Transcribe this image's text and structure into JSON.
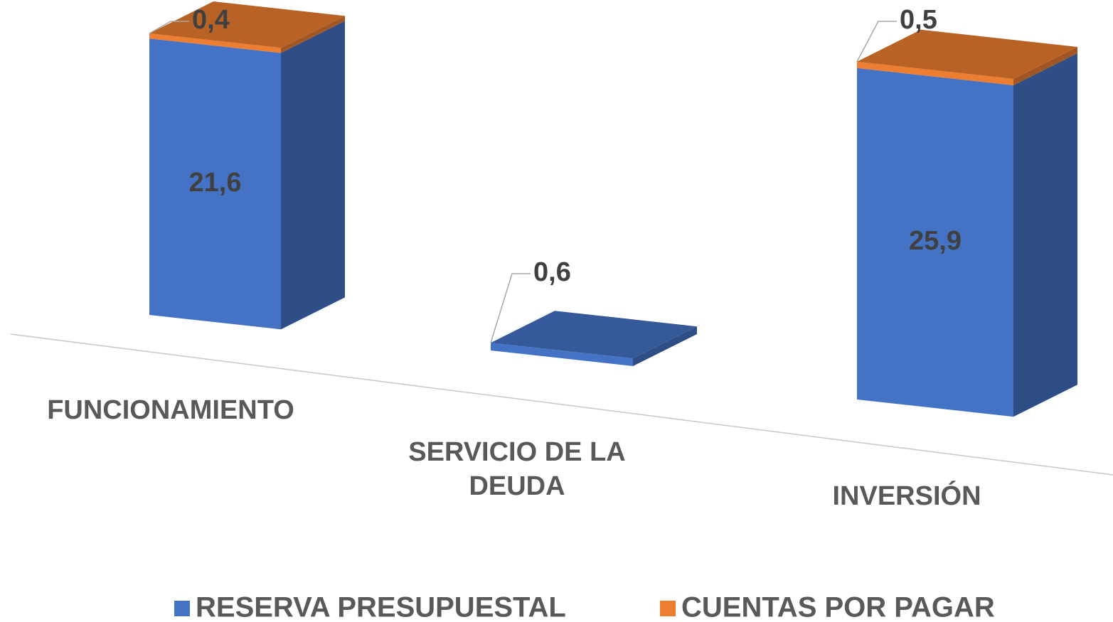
{
  "chart_data": {
    "type": "bar3d_stacked",
    "categories": [
      "FUNCIONAMIENTO",
      "SERVICIO DE LA DEUDA",
      "INVERSIÓN"
    ],
    "series": [
      {
        "name": "RESERVA PRESUPUESTAL",
        "color": "#4472c4",
        "values": [
          21.6,
          0.6,
          25.9
        ],
        "value_labels": [
          "21,6",
          "0,6",
          "25,9"
        ]
      },
      {
        "name": "CUENTAS POR PAGAR",
        "color": "#ed7d31",
        "values": [
          0.4,
          null,
          0.5
        ],
        "value_labels": [
          "0,4",
          null,
          "0,5"
        ]
      }
    ]
  }
}
